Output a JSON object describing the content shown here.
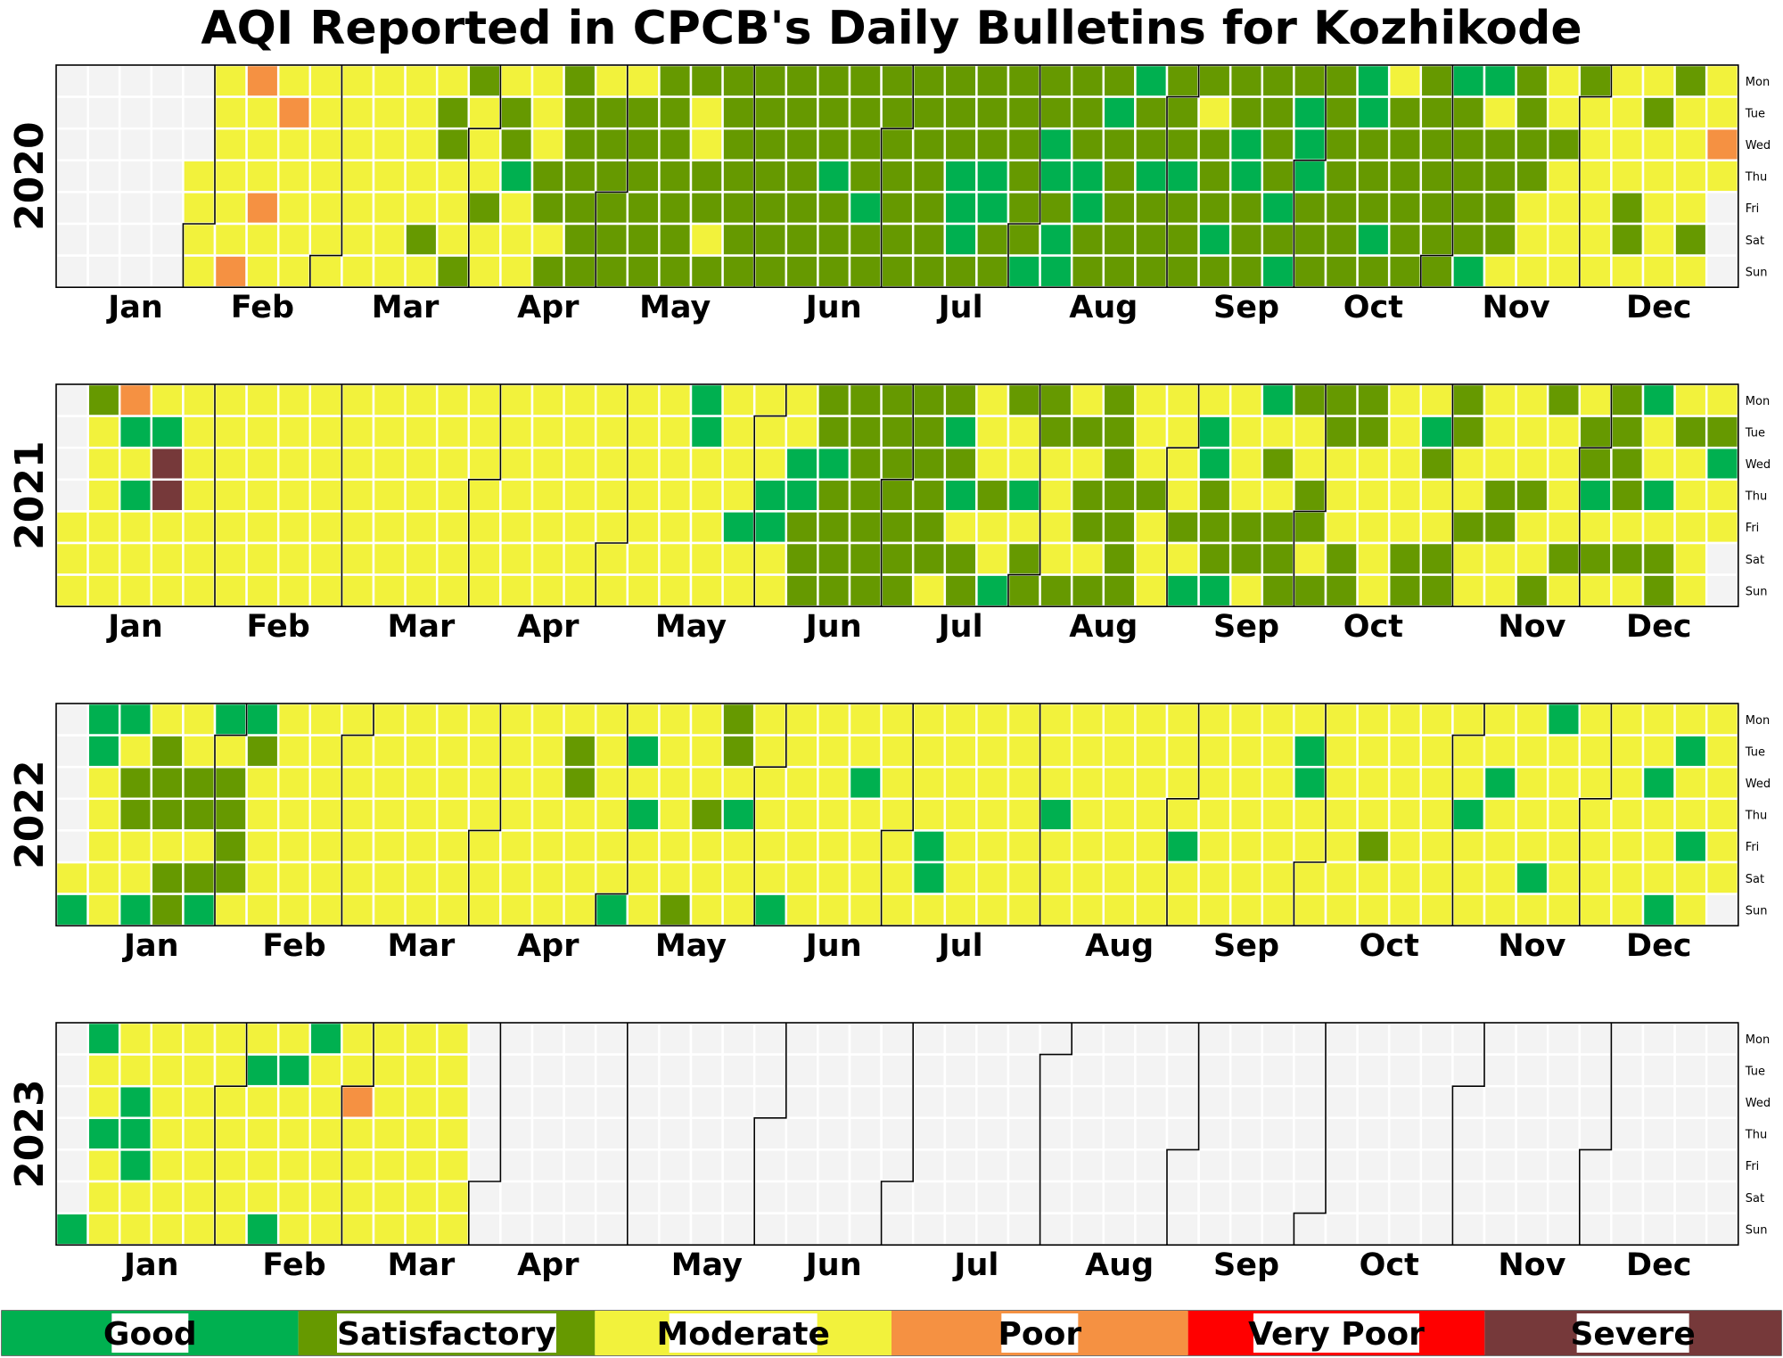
{
  "title": "AQI Reported in CPCB's Daily Bulletins for Kozhikode",
  "chart_data": {
    "type": "heatmap",
    "subtype": "calendar",
    "title": "AQI Reported in CPCB's Daily Bulletins for Kozhikode",
    "weekday_labels": [
      "Mon",
      "Tue",
      "Wed",
      "Thu",
      "Fri",
      "Sat",
      "Sun"
    ],
    "month_labels": [
      "Jan",
      "Feb",
      "Mar",
      "Apr",
      "May",
      "Jun",
      "Jul",
      "Aug",
      "Sep",
      "Oct",
      "Nov",
      "Dec"
    ],
    "categories": [
      {
        "code": "G",
        "name": "Good",
        "color": "#00b050"
      },
      {
        "code": "S",
        "name": "Satisfactory",
        "color": "#669900"
      },
      {
        "code": "M",
        "name": "Moderate",
        "color": "#f2f23c"
      },
      {
        "code": "P",
        "name": "Poor",
        "color": "#f59142"
      },
      {
        "code": "V",
        "name": "Very Poor",
        "color": "#ff0000"
      },
      {
        "code": "X",
        "name": "Severe",
        "color": "#76393a"
      }
    ],
    "missing_color": "#f3f3f3",
    "years": [
      {
        "year": "2020",
        "start_weekday": 2,
        "days": 366,
        "values": "_____________________________MMMMMMMMMMPPMMMPMMMPMMMMMMMMMMMMMMMMMMMMMMMMMMMMMMMSMMSSMMMSSMMMSMMMSSGMMMMMMSSMSSSSSSSSMSSSSSSMSSSSSSSSSSSSSSMMSSMSSSSSSSSSSSSSSSSSSSSSSSSSGSSSSSSSGSSSSSSSSSSSSSSSSSSSGGGSSSSGGSSSSSSSSGSSGGSGGSSSGGSSSGSSSSSGSSGSSSSSSGSSSSMSSSGSSSGGSSSSSSSGSGSGGGSSSSSSSSSSGGSSSGSMSSSSSSSSSSSSSGSSSSSGGMSSSSMSSSSMMMMMSMMMMSMMMMMMMMMMSSMMSMMMMMSMMMMSMMMPMMMSMMMMMMMMMMMMMMMPMMMMMMMMMMMMMM"
      },
      {
        "year": "2021",
        "start_weekday": 4,
        "days": 365,
        "values": "MMMSMMMMMMPGMGMMMMGXXMMMMMMMMMMMMMMMMMMMMMMMMMMMMMMMMMMMMMMMMMMMMMMMMMMMMMMMMMMMMMMMMMMMMMMMMMMMMMMMMMMMMMMMMMMMMMMMMMMMMMMMMMMMMMMMMMMMGGMMMMMMMMMGMMMMMGGMMMMGGSSSSSGSSSSSSSSSSSSSSSSSSSSSSSSMSGSGMSSMMMSMMGSMMGMSSSSMMMMSMSMSSMSSSSSSSSMMMSMMMMMMMSMGMGGSSSGMMMMSSMGMSMSSSSMMSSMSSSMMMSSSSMMMMMMMMMMSSMGSMMSSSSMMSMMMMMSSMMMMMSMMSSMMMMSMMSSGMSMSSSSMSMGMMGMSSMSMMMMMMSGMMSSMGSSSSSSSMSSSMMSMMMMSMMMSSMMMSSMMSMSMMMMMMMSSMSSSMSSSMSSSGSGSSSSMSSGSMMMSSMMMSMMSMMMM"
      },
      {
        "year": "2022",
        "start_weekday": 5,
        "days": 365,
        "values": "MGGGMMMMMGMSSMMGMSSSMSSMMSSMSGGMSSSSMGSMMMMMMMMMMMMMMMMMMMMMMMMMMMMMMMMMMMMMMMMMMMMMMMMMMMMMMMMMMMMMMMMMMMMMSSMMMMMMMMMMGMGMGMMMMMMMMMSMMMSMMMSSMGMMMMMMMMMGMMMMMMMMMMMMMMMMGMMMMMMMMMMMMMMMGGMMMMMMMMMMMMMMMMMMMMMMMMMGMMMMMMMMMMMMMMMMMMMMMMMMMMMMGMMMMMMMMMMMMMMMMMMMMMMMMGGMMMMMMMMMMMMMMMSMMMMMMMMMMMMMMMMMMMGMMMMMGMMMMMMMMMGMGMMMMMMMMMMMMMMMMMMMMMMGMMMGMGMMGMMMMMMMMGMGMMMMMMMMMMMMGGGMMMMMMGGGMMMMMGGGMMMGGGGGGGGSSGGGGSSSSSSGGSSSGGSMMMMMMGGGMMMSMMMSGG"
      },
      {
        "year": "2023",
        "start_weekday": 6,
        "days": 365,
        "values": "GGMMGMMMMMGGGMMMMMMMMMMMMMMMMMMMMMMMMGMMMMGMGMMMMMGMMMMMMMMPMMMMMMMMMMMMMMMMMMMMMMMMM"
      }
    ]
  }
}
